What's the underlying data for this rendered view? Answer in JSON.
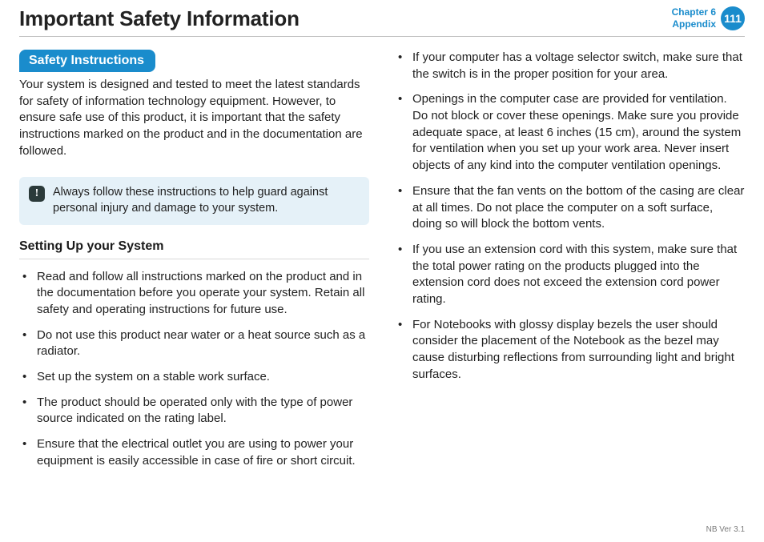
{
  "header": {
    "title": "Important Safety Information",
    "chapter_line1": "Chapter 6",
    "chapter_line2": "Appendix",
    "page_number": "111"
  },
  "left": {
    "pill": "Safety Instructions",
    "intro": "Your system is designed and tested to meet the latest standards for safety of information technology equipment. However, to ensure safe use of this product, it is important that the safety instructions marked on the product and in the documentation are followed.",
    "callout": "Always follow these instructions to help guard against personal injury and damage to your system.",
    "subheading": "Setting Up your System",
    "bullets": [
      "Read and follow all instructions marked on the product and in the documentation before you operate your system. Retain all safety and operating instructions for future use.",
      "Do not use this product near water or a heat source such as a radiator.",
      "Set up the system on a stable work surface.",
      "The product should be operated only with the type of power source indicated on the rating label.",
      "Ensure that the electrical outlet you are using to power your equipment is easily accessible in case of fire or short circuit."
    ]
  },
  "right": {
    "bullets": [
      "If your computer has a voltage selector switch, make sure that the switch is in the proper position for your area.",
      "Openings in the computer case are provided for ventilation. Do not block or cover these openings. Make sure you provide adequate space, at least 6 inches (15 cm), around the system for ventilation when you set up your work area. Never insert objects of any kind into the computer ventilation openings.",
      "Ensure that the fan vents on the bottom of the casing are clear at all times. Do not place the computer on a soft surface, doing so will block the bottom vents.",
      "If you use an extension cord with this system, make sure that the total power rating on the products plugged into the extension cord does not exceed the extension cord power rating.",
      "For Notebooks with glossy display bezels the user should consider the placement of the Notebook as the bezel may cause disturbing reflections from surrounding light and bright surfaces."
    ]
  },
  "footer": {
    "version": "NB Ver 3.1"
  },
  "colors": {
    "accent": "#1a8ccc",
    "callout_bg": "#e5f1f8",
    "rule": "#bfbfbf",
    "text": "#222222"
  }
}
